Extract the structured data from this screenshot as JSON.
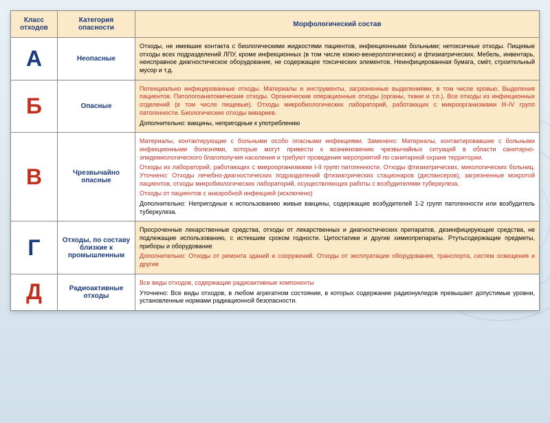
{
  "headers": {
    "col1": "Класс отходов",
    "col2": "Категория опасности",
    "col3": "Морфологический состав"
  },
  "rows": [
    {
      "class": "А",
      "class_color": "#1a3a7a",
      "category": "Неопасные",
      "desc_alt_bg": true,
      "paragraphs": [
        {
          "text": "Отходы, не имевшие контакта с биологическими жидкостями пациентов, инфекционными больными; нетоксичные отходы. Пищевые отходы всех подразделений ЛПУ, кроме инфекционных (в том числе кожно-венерологических) и фтизиатрических. Мебель, инвентарь, неисправное диагностическое оборудование, не содержащее токсических элементов. Неинфицированная бумага, смёт, строительный мусор и т.д.",
          "color": "#000"
        }
      ]
    },
    {
      "class": "Б",
      "class_color": "#c03020",
      "category": "Опасные",
      "desc_alt_bg": true,
      "paragraphs": [
        {
          "text": "Потенциально инфицированные отходы. Материалы и инструменты, загрязненные выделениями, в том числе кровью. Выделения пациентов. Патологоанатомические отходы. Органические операционные отходы (органы, ткани и т.п.). Все отходы из инфекционных отделений (в том числе пищевые). Отходы микробиологических лабораторий, работающих с микроорганизмами III-IV групп патогенности. Биологические отходы вивариев.",
          "color": "#c03020"
        },
        {
          "text": "Дополнительно: вакцины, непригодные к употреблению",
          "color": "#000"
        }
      ]
    },
    {
      "class": "В",
      "class_color": "#c03020",
      "category": "Чрезвычайно опасные",
      "desc_alt_bg": false,
      "paragraphs": [
        {
          "text": "Материалы, контактирующие с больными особо опасными инфекциями. Заменено: Материалы, контактировавшие с больными инфекционными болезнями, которые могут привести к возникновению чрезвычайных ситуаций в области санитарно-эпидемиологического благополучия населения и требуют проведения мероприятий по санитарной охране территории.",
          "color": "#c03020"
        },
        {
          "text": "Отходы из лабораторий, работающих с микроорганизмами I-II групп патогенности. Отходы фтизиатрических, микологических больниц. Уточнено: Отходы лечебно-диагностических подразделений фтизиатрических стационаров (диспансеров), загрязненные мокротой пациентов, отходы микробиологических лабораторий, осуществляющих работы с возбудителями туберкулеза.",
          "color": "#c03020"
        },
        {
          "text": "Отходы от пациентов с анаэробной инфекцией (исключено)",
          "color": "#c03020"
        },
        {
          "text": "Дополнительно: Непригодные к использованию живые вакцины, содержащие возбудителей 1-2 групп патогенности или возбудитель туберкулеза.",
          "color": "#000"
        }
      ]
    },
    {
      "class": "Г",
      "class_color": "#1a3a7a",
      "category": "Отходы, по составу близкие к промышленным",
      "desc_alt_bg": true,
      "paragraphs": [
        {
          "text": "Просроченные лекарственные средства, отходы от лекарственных и диагностических препаратов, дезинфицирующие средства, не подлежащие использованию, с истекшим сроком годности. Цитостатики и другие химиопрепараты. Ртутьсодержащие предметы, приборы и оборудование",
          "color": "#000"
        },
        {
          "text": "Дополнительно: Отходы от ремонта зданий и сооружений. Отходы от эксплуатации оборудования, транспорта, систем освещения и другие",
          "color": "#c03020"
        }
      ]
    },
    {
      "class": "Д",
      "class_color": "#c03020",
      "category": "Радиоактивные отходы",
      "desc_alt_bg": false,
      "paragraphs": [
        {
          "text": "Все виды отходов, содержащие радиоактивные компоненты",
          "color": "#c03020"
        },
        {
          "text": "Уточнено: Все виды отходов, в любом агрегатном состоянии, в которых содержание радионуклидов превышает допустимые уровни, установленные нормами радиационной безопасности.",
          "color": "#000"
        }
      ]
    }
  ]
}
